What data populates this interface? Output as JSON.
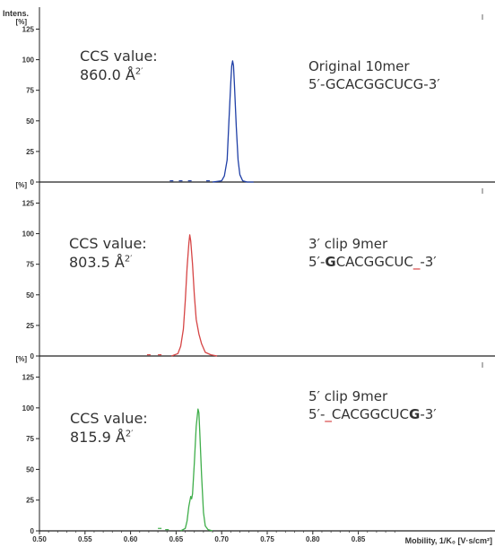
{
  "chart_data": {
    "type": "line",
    "xlabel": "Mobility, 1/K₀ [V·s/cm²]",
    "xlim": [
      0.5,
      1.0
    ],
    "x_ticks": [
      "0.50",
      "0.55",
      "0.60",
      "0.65",
      "0.70",
      "0.75",
      "0.80",
      "0.85"
    ],
    "ylabel_top": "Intens.",
    "ylabel_unit": "[%]",
    "ylim": [
      0,
      140
    ],
    "y_ticks": [
      "0",
      "25",
      "50",
      "75",
      "100",
      "125"
    ],
    "grid": false,
    "panels": [
      {
        "color": "#1f3fa6",
        "ccs_label": "CCS value:",
        "ccs_value": "860.0 Å",
        "ccs_sup": "2′",
        "seq_title": "Original 10mer",
        "seq_parts": [
          {
            "text": "5′-GCACGGCUCG-3′",
            "style": "normal"
          }
        ],
        "x": [
          0.69,
          0.7,
          0.703,
          0.706,
          0.708,
          0.71,
          0.711,
          0.712,
          0.713,
          0.714,
          0.716,
          0.718,
          0.72,
          0.723,
          0.728,
          0.735
        ],
        "y": [
          0,
          1,
          5,
          18,
          50,
          82,
          95,
          99,
          95,
          80,
          45,
          18,
          6,
          1,
          0,
          0
        ],
        "noise_x": [
          0.645,
          0.655,
          0.665,
          0.685
        ],
        "noise_y": [
          1,
          1,
          1,
          1
        ]
      },
      {
        "color": "#d64545",
        "ccs_label": "CCS value:",
        "ccs_value": "803.5 Å",
        "ccs_sup": "2′",
        "seq_title": "3′ clip 9mer",
        "seq_parts": [
          {
            "text": "5′-",
            "style": "normal"
          },
          {
            "text": "G",
            "style": "bold"
          },
          {
            "text": "CACGGCUC",
            "style": "normal"
          },
          {
            "text": "_",
            "style": "red"
          },
          {
            "text": "-3′",
            "style": "normal"
          }
        ],
        "x": [
          0.645,
          0.652,
          0.655,
          0.658,
          0.66,
          0.662,
          0.664,
          0.665,
          0.666,
          0.668,
          0.67,
          0.672,
          0.675,
          0.678,
          0.682,
          0.688,
          0.695
        ],
        "y": [
          0,
          2,
          8,
          22,
          45,
          72,
          92,
          99,
          94,
          75,
          50,
          30,
          18,
          10,
          3,
          1,
          0
        ],
        "noise_x": [
          0.62,
          0.632
        ],
        "noise_y": [
          1,
          1
        ]
      },
      {
        "color": "#3fae4a",
        "ccs_label": "CCS value:",
        "ccs_value": "815.9 Å",
        "ccs_sup": "2′",
        "seq_title": "5′ clip 9mer",
        "seq_parts": [
          {
            "text": "5′-",
            "style": "normal"
          },
          {
            "text": "_",
            "style": "red"
          },
          {
            "text": "CACGGCUC",
            "style": "normal"
          },
          {
            "text": "G",
            "style": "bold"
          },
          {
            "text": "-3′",
            "style": "normal"
          }
        ],
        "x": [
          0.655,
          0.66,
          0.662,
          0.664,
          0.666,
          0.667,
          0.668,
          0.67,
          0.672,
          0.674,
          0.675,
          0.676,
          0.678,
          0.68,
          0.682,
          0.685,
          0.69
        ],
        "y": [
          0,
          2,
          8,
          20,
          28,
          26,
          30,
          55,
          85,
          99,
          96,
          80,
          45,
          15,
          4,
          1,
          0
        ],
        "noise_x": [
          0.632,
          0.64
        ],
        "noise_y": [
          2,
          1
        ]
      }
    ]
  }
}
